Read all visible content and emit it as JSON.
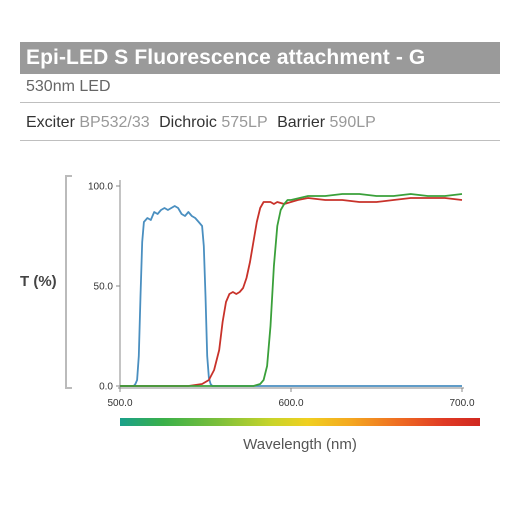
{
  "header": {
    "title": "Epi-LED S Fluorescence attachment - G",
    "subtitle": "530nm LED",
    "filters": [
      {
        "label": "Exciter",
        "value": "BP532/33"
      },
      {
        "label": "Dichroic",
        "value": "575LP"
      },
      {
        "label": "Barrier",
        "value": "590LP"
      }
    ]
  },
  "chart_data": {
    "type": "line",
    "title": "",
    "xlabel": "Wavelength (nm)",
    "ylabel": "T (%)",
    "xlim": [
      500,
      700
    ],
    "ylim": [
      0,
      100
    ],
    "xticks": [
      "500.0",
      "600.0",
      "700.0"
    ],
    "yticks": [
      "0.0",
      "50.0",
      "100.0"
    ],
    "grid": false,
    "series": [
      {
        "name": "Exciter",
        "color": "#4a8fc0",
        "x": [
          500,
          508,
          509,
          510,
          511,
          512,
          513,
          514,
          516,
          518,
          520,
          522,
          524,
          526,
          528,
          530,
          532,
          534,
          536,
          538,
          540,
          542,
          544,
          546,
          548,
          549,
          550,
          551,
          552,
          553,
          554,
          556,
          560,
          580,
          600,
          620,
          650,
          700
        ],
        "y": [
          0,
          0,
          1,
          3,
          15,
          45,
          72,
          82,
          84,
          83,
          87,
          86,
          88,
          89,
          88,
          89,
          90,
          89,
          86,
          85,
          87,
          85,
          84,
          82,
          80,
          70,
          45,
          15,
          4,
          1,
          0,
          0,
          0,
          0,
          0,
          0,
          0,
          0
        ]
      },
      {
        "name": "Dichroic",
        "color": "#c8322a",
        "x": [
          500,
          540,
          548,
          552,
          555,
          558,
          560,
          562,
          564,
          566,
          568,
          570,
          572,
          574,
          576,
          578,
          580,
          582,
          584,
          586,
          588,
          590,
          592,
          596,
          600,
          604,
          610,
          620,
          630,
          640,
          650,
          660,
          670,
          680,
          690,
          700
        ],
        "y": [
          0,
          0,
          1,
          3,
          8,
          18,
          32,
          42,
          46,
          47,
          46,
          47,
          49,
          54,
          62,
          72,
          82,
          89,
          92,
          92,
          92,
          91,
          92,
          91,
          92,
          93,
          94,
          93,
          93,
          92,
          92,
          93,
          94,
          94,
          94,
          93
        ]
      },
      {
        "name": "Barrier",
        "color": "#3aa03a",
        "x": [
          500,
          570,
          578,
          582,
          584,
          586,
          588,
          590,
          592,
          594,
          596,
          598,
          600,
          605,
          610,
          620,
          630,
          640,
          650,
          660,
          670,
          680,
          690,
          700
        ],
        "y": [
          0,
          0,
          0,
          1,
          3,
          10,
          30,
          60,
          80,
          88,
          91,
          93,
          93,
          94,
          95,
          95,
          96,
          96,
          95,
          95,
          96,
          95,
          95,
          96
        ]
      }
    ]
  }
}
